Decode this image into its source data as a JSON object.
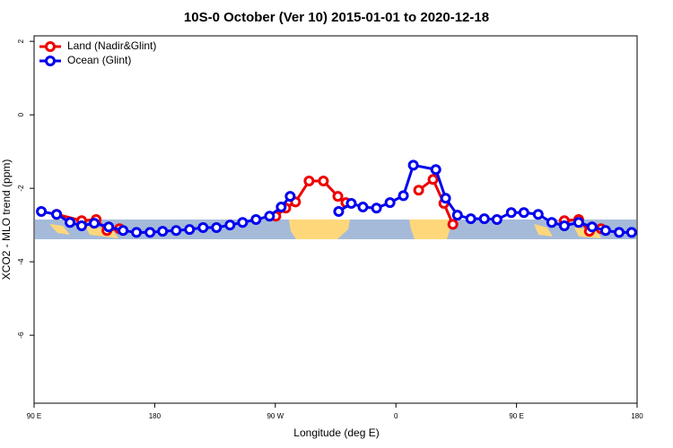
{
  "chart_data": {
    "type": "line",
    "title": "10S-0 October (Ver 10)   2015-01-01 to 2020-12-18",
    "xlabel": "Longitude (deg E)",
    "ylabel": "XCO2 - MLO trend (ppm)",
    "xlim": [
      90,
      540
    ],
    "ylim": [
      -7.85,
      2.15
    ],
    "xticks": [
      {
        "value": 90,
        "label": "90 E"
      },
      180,
      {
        "value": 270,
        "label": "90 W"
      },
      {
        "value": 360,
        "label": "0"
      },
      {
        "value": 450,
        "label": "90 E"
      },
      {
        "value": 540,
        "label": "180"
      }
    ],
    "yticks": [
      2,
      0,
      -2,
      -4,
      -6
    ],
    "legend": "top-left",
    "series": [
      {
        "name": "Land (Nadir&Glint)",
        "color": "#ee0000",
        "x": [
          106.8,
          125.5,
          136.3,
          144.3,
          153.7,
          null,
          270.4,
          277.8,
          285.1,
          295.2,
          305.9,
          316.7,
          322.7,
          null,
          377.0,
          387.7,
          395.8,
          402.5,
          null,
          485.7,
          496.4,
          504.4,
          513.1
        ],
        "values": [
          -2.71,
          -2.88,
          -2.85,
          -3.15,
          -3.1,
          null,
          -2.76,
          -2.54,
          -2.37,
          -1.8,
          -1.8,
          -2.22,
          -2.39,
          null,
          -2.05,
          -1.76,
          -2.41,
          -2.98,
          null,
          -2.88,
          -2.85,
          -3.17,
          -3.1
        ]
      },
      {
        "name": "Ocean (Glint)",
        "color": "#0000ee",
        "x": [
          95.4,
          106.8,
          116.8,
          125.5,
          134.9,
          145.7,
          156.4,
          166.4,
          176.5,
          185.9,
          196.0,
          206.0,
          216.1,
          226.1,
          236.2,
          245.6,
          255.6,
          265.7,
          274.4,
          281.1,
          null,
          317.3,
          326.7,
          335.4,
          345.5,
          355.6,
          365.6,
          373.0,
          389.8,
          397.1,
          405.9,
          415.9,
          426.0,
          435.4,
          446.1,
          455.5,
          466.2,
          476.3,
          485.7,
          496.4,
          506.4,
          516.5,
          526.6,
          535.9
        ],
        "values": [
          -2.63,
          -2.71,
          -2.93,
          -3.02,
          -2.95,
          -3.05,
          -3.15,
          -3.2,
          -3.2,
          -3.17,
          -3.15,
          -3.12,
          -3.07,
          -3.07,
          -3.0,
          -2.93,
          -2.85,
          -2.76,
          -2.51,
          -2.22,
          null,
          -2.63,
          -2.41,
          -2.51,
          -2.54,
          -2.39,
          -2.2,
          -1.37,
          -1.49,
          -2.27,
          -2.73,
          -2.83,
          -2.83,
          -2.85,
          -2.66,
          -2.66,
          -2.71,
          -2.93,
          -3.02,
          -2.93,
          -3.05,
          -3.15,
          -3.2,
          -3.2
        ]
      }
    ]
  }
}
